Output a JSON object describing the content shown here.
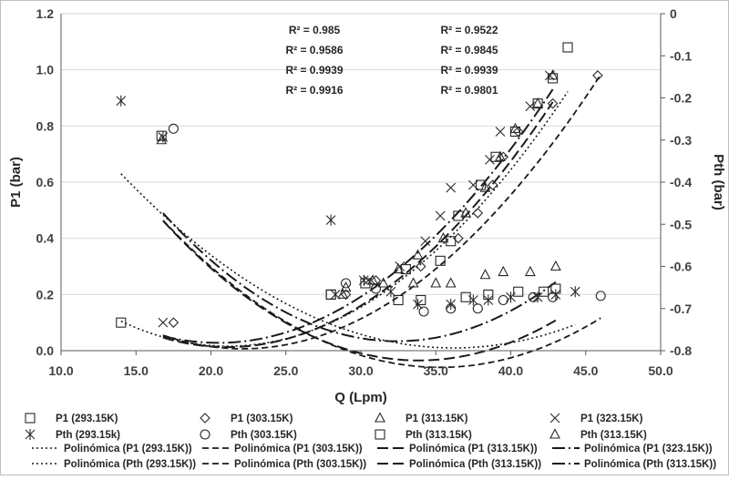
{
  "chart_data": {
    "type": "scatter",
    "xlabel": "Q (Lpm)",
    "ylabel": "P1 (bar)",
    "y2label": "Pth (bar)",
    "xlim": [
      10,
      50
    ],
    "ylim": [
      0,
      1.2
    ],
    "y2lim": [
      -0.8,
      0
    ],
    "xticks": [
      "10.0",
      "15.0",
      "20.0",
      "25.0",
      "30.0",
      "35.0",
      "40.0",
      "45.0",
      "50.0"
    ],
    "yticks": [
      "0.0",
      "0.2",
      "0.4",
      "0.6",
      "0.8",
      "1.0",
      "1.2"
    ],
    "y2ticks": [
      "0",
      "-0.1",
      "-0.2",
      "-0.3",
      "-0.4",
      "-0.5",
      "-0.6",
      "-0.7",
      "-0.8"
    ],
    "r2_left": [
      "R² = 0.985",
      "R² = 0.9586",
      "R² = 0.9939",
      "R² = 0.9916"
    ],
    "r2_right": [
      "R² = 0.9522",
      "R² = 0.9845",
      "R² = 0.9939",
      "R² = 0.9801"
    ],
    "series": [
      {
        "name": "P1 (293.15K)",
        "marker": "square",
        "axis": "left",
        "points": [
          [
            14.0,
            0.1
          ],
          [
            28.0,
            0.2
          ],
          [
            30.3,
            0.24
          ],
          [
            33.0,
            0.29
          ],
          [
            35.3,
            0.32
          ],
          [
            36.0,
            0.39
          ],
          [
            36.5,
            0.48
          ],
          [
            38.0,
            0.59
          ],
          [
            39.0,
            0.69
          ],
          [
            40.3,
            0.78
          ],
          [
            41.8,
            0.88
          ],
          [
            42.8,
            0.97
          ],
          [
            43.8,
            1.08
          ]
        ]
      },
      {
        "name": "P1 (303.15K)",
        "marker": "diamond",
        "axis": "left",
        "points": [
          [
            17.5,
            0.1
          ],
          [
            29.0,
            0.2
          ],
          [
            31.0,
            0.25
          ],
          [
            34.0,
            0.3
          ],
          [
            36.5,
            0.4
          ],
          [
            37.8,
            0.49
          ],
          [
            38.8,
            0.59
          ],
          [
            39.5,
            0.69
          ],
          [
            40.5,
            0.78
          ],
          [
            42.8,
            0.88
          ],
          [
            45.8,
            0.98
          ]
        ]
      },
      {
        "name": "P1 (313.15K)",
        "marker": "triangle",
        "axis": "left",
        "points": [
          [
            28.8,
            0.2
          ],
          [
            30.8,
            0.25
          ],
          [
            32.5,
            0.29
          ],
          [
            33.8,
            0.34
          ],
          [
            35.5,
            0.4
          ],
          [
            37.0,
            0.49
          ],
          [
            38.3,
            0.58
          ],
          [
            39.3,
            0.69
          ],
          [
            40.3,
            0.79
          ],
          [
            41.8,
            0.88
          ],
          [
            42.8,
            0.98
          ]
        ]
      },
      {
        "name": "P1 (323.15K)",
        "marker": "x",
        "axis": "left",
        "points": [
          [
            16.8,
            0.1
          ],
          [
            28.3,
            0.2
          ],
          [
            30.5,
            0.25
          ],
          [
            32.6,
            0.3
          ],
          [
            34.3,
            0.39
          ],
          [
            35.3,
            0.48
          ],
          [
            36.0,
            0.58
          ],
          [
            37.5,
            0.59
          ],
          [
            38.6,
            0.68
          ],
          [
            39.3,
            0.78
          ],
          [
            41.3,
            0.87
          ],
          [
            42.6,
            0.98
          ]
        ]
      },
      {
        "name": "Pth (293.15k)",
        "marker": "asterisk",
        "axis": "right",
        "points": [
          [
            14.0,
            -0.207
          ],
          [
            16.8,
            -0.293
          ],
          [
            28.0,
            -0.49
          ],
          [
            30.2,
            -0.633
          ],
          [
            32.0,
            -0.66
          ],
          [
            33.8,
            -0.69
          ],
          [
            36.0,
            -0.69
          ],
          [
            37.5,
            -0.68
          ],
          [
            38.5,
            -0.68
          ],
          [
            40.0,
            -0.673
          ],
          [
            41.8,
            -0.673
          ],
          [
            43.0,
            -0.667
          ],
          [
            44.3,
            -0.66
          ]
        ]
      },
      {
        "name": "Pth (303.15K)",
        "marker": "circle",
        "axis": "right",
        "points": [
          [
            17.5,
            -0.273
          ],
          [
            29.0,
            -0.64
          ],
          [
            31.0,
            -0.653
          ],
          [
            34.2,
            -0.707
          ],
          [
            36.0,
            -0.7
          ],
          [
            37.8,
            -0.7
          ],
          [
            39.5,
            -0.68
          ],
          [
            41.5,
            -0.673
          ],
          [
            42.8,
            -0.673
          ],
          [
            46.0,
            -0.67
          ]
        ]
      },
      {
        "name": "Pth (313.15K)",
        "marker": "square",
        "axis": "right",
        "points": [
          [
            16.7,
            -0.29
          ],
          [
            28.0,
            -0.667
          ],
          [
            32.5,
            -0.68
          ],
          [
            34.0,
            -0.68
          ],
          [
            37.0,
            -0.673
          ],
          [
            38.5,
            -0.667
          ],
          [
            40.5,
            -0.66
          ],
          [
            42.2,
            -0.66
          ],
          [
            43.0,
            -0.653
          ]
        ]
      },
      {
        "name": "Pth (313.15K)",
        "marker": "triangle",
        "axis": "right",
        "points": [
          [
            16.7,
            -0.3
          ],
          [
            29.0,
            -0.65
          ],
          [
            31.5,
            -0.64
          ],
          [
            33.5,
            -0.64
          ],
          [
            35.0,
            -0.64
          ],
          [
            36.0,
            -0.64
          ],
          [
            38.3,
            -0.62
          ],
          [
            39.5,
            -0.613
          ],
          [
            41.3,
            -0.613
          ],
          [
            43.0,
            -0.6
          ]
        ]
      }
    ],
    "trendlines": [
      {
        "name": "Polinómica (P1 (293.15K))",
        "axis": "left",
        "dash": "2,3",
        "width": 1.6,
        "coef": [
          0.8002,
          -0.0743,
          0.00176
        ],
        "range": [
          14.0,
          43.8
        ]
      },
      {
        "name": "Polinómica (P1 (303.15K))",
        "axis": "left",
        "dash": "7,4",
        "width": 1.8,
        "coef": [
          0.8424,
          -0.0756,
          0.00171
        ],
        "range": [
          16.8,
          46.0
        ]
      },
      {
        "name": "Polinómica (P1 (313.15K))",
        "axis": "left",
        "dash": "12,5",
        "width": 2.0,
        "coef": [
          0.8348,
          -0.078,
          0.00185
        ],
        "range": [
          16.8,
          42.8
        ]
      },
      {
        "name": "Polinómica (P1 (323.15K))",
        "axis": "left",
        "dash": "14,4,2,4",
        "width": 2.0,
        "coef": [
          0.7862,
          -0.0741,
          0.00181
        ],
        "range": [
          16.8,
          42.8
        ]
      },
      {
        "name": "Polinómica (Pth (293.15K))",
        "axis": "right",
        "dash": "2,3",
        "width": 1.6,
        "coef": [
          0.3067,
          -0.0608,
          0.00084
        ],
        "range": [
          14.0,
          44.3
        ]
      },
      {
        "name": "Polinómica (Pth (303.15K))",
        "axis": "right",
        "dash": "7,4",
        "width": 1.8,
        "coef": [
          0.431,
          -0.072,
          0.00102
        ],
        "range": [
          16.8,
          46.0
        ]
      },
      {
        "name": "Polinómica (Pth (313.15K))",
        "axis": "right",
        "dash": "12,5",
        "width": 2.0,
        "coef": [
          0.4838,
          -0.0772,
          0.00114
        ],
        "range": [
          16.8,
          43.0
        ]
      },
      {
        "name": "Polinómica (Pth (313.15K))",
        "axis": "right",
        "dash": "14,4,2,4",
        "width": 2.0,
        "coef": [
          0.5346,
          -0.081,
          0.00125
        ],
        "range": [
          16.8,
          43.0
        ]
      }
    ],
    "legend_position": "bottom"
  }
}
